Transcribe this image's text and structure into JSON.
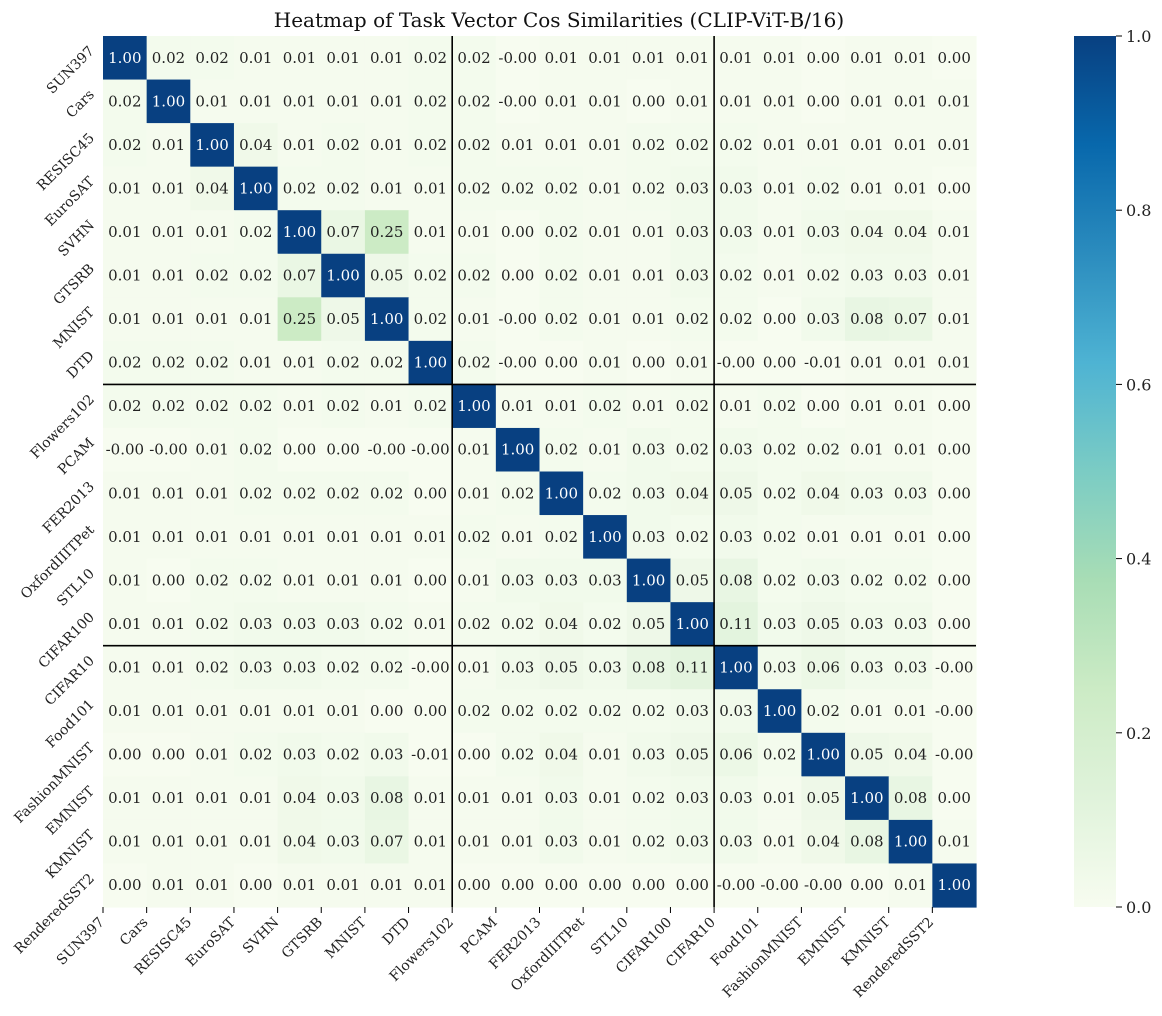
{
  "chart_data": {
    "type": "heatmap",
    "title": "Heatmap of Task Vector Cos Similarities (CLIP-ViT-B/16)",
    "labels": [
      "SUN397",
      "Cars",
      "RESISC45",
      "EuroSAT",
      "SVHN",
      "GTSRB",
      "MNIST",
      "DTD",
      "Flowers102",
      "PCAM",
      "FER2013",
      "OxfordIIITPet",
      "STL10",
      "CIFAR100",
      "CIFAR10",
      "Food101",
      "FashionMNIST",
      "EMNIST",
      "KMNIST",
      "RenderedSST2"
    ],
    "values": [
      [
        1.0,
        0.02,
        0.02,
        0.01,
        0.01,
        0.01,
        0.01,
        0.02,
        0.02,
        -0.0,
        0.01,
        0.01,
        0.01,
        0.01,
        0.01,
        0.01,
        0.0,
        0.01,
        0.01,
        0.0
      ],
      [
        0.02,
        1.0,
        0.01,
        0.01,
        0.01,
        0.01,
        0.01,
        0.02,
        0.02,
        -0.0,
        0.01,
        0.01,
        0.0,
        0.01,
        0.01,
        0.01,
        0.0,
        0.01,
        0.01,
        0.01
      ],
      [
        0.02,
        0.01,
        1.0,
        0.04,
        0.01,
        0.02,
        0.01,
        0.02,
        0.02,
        0.01,
        0.01,
        0.01,
        0.02,
        0.02,
        0.02,
        0.01,
        0.01,
        0.01,
        0.01,
        0.01
      ],
      [
        0.01,
        0.01,
        0.04,
        1.0,
        0.02,
        0.02,
        0.01,
        0.01,
        0.02,
        0.02,
        0.02,
        0.01,
        0.02,
        0.03,
        0.03,
        0.01,
        0.02,
        0.01,
        0.01,
        0.0
      ],
      [
        0.01,
        0.01,
        0.01,
        0.02,
        1.0,
        0.07,
        0.25,
        0.01,
        0.01,
        0.0,
        0.02,
        0.01,
        0.01,
        0.03,
        0.03,
        0.01,
        0.03,
        0.04,
        0.04,
        0.01
      ],
      [
        0.01,
        0.01,
        0.02,
        0.02,
        0.07,
        1.0,
        0.05,
        0.02,
        0.02,
        0.0,
        0.02,
        0.01,
        0.01,
        0.03,
        0.02,
        0.01,
        0.02,
        0.03,
        0.03,
        0.01
      ],
      [
        0.01,
        0.01,
        0.01,
        0.01,
        0.25,
        0.05,
        1.0,
        0.02,
        0.01,
        -0.0,
        0.02,
        0.01,
        0.01,
        0.02,
        0.02,
        0.0,
        0.03,
        0.08,
        0.07,
        0.01
      ],
      [
        0.02,
        0.02,
        0.02,
        0.01,
        0.01,
        0.02,
        0.02,
        1.0,
        0.02,
        -0.0,
        0.0,
        0.01,
        0.0,
        0.01,
        -0.0,
        0.0,
        -0.01,
        0.01,
        0.01,
        0.01
      ],
      [
        0.02,
        0.02,
        0.02,
        0.02,
        0.01,
        0.02,
        0.01,
        0.02,
        1.0,
        0.01,
        0.01,
        0.02,
        0.01,
        0.02,
        0.01,
        0.02,
        0.0,
        0.01,
        0.01,
        0.0
      ],
      [
        -0.0,
        -0.0,
        0.01,
        0.02,
        0.0,
        0.0,
        -0.0,
        -0.0,
        0.01,
        1.0,
        0.02,
        0.01,
        0.03,
        0.02,
        0.03,
        0.02,
        0.02,
        0.01,
        0.01,
        0.0
      ],
      [
        0.01,
        0.01,
        0.01,
        0.02,
        0.02,
        0.02,
        0.02,
        0.0,
        0.01,
        0.02,
        1.0,
        0.02,
        0.03,
        0.04,
        0.05,
        0.02,
        0.04,
        0.03,
        0.03,
        0.0
      ],
      [
        0.01,
        0.01,
        0.01,
        0.01,
        0.01,
        0.01,
        0.01,
        0.01,
        0.02,
        0.01,
        0.02,
        1.0,
        0.03,
        0.02,
        0.03,
        0.02,
        0.01,
        0.01,
        0.01,
        0.0
      ],
      [
        0.01,
        0.0,
        0.02,
        0.02,
        0.01,
        0.01,
        0.01,
        0.0,
        0.01,
        0.03,
        0.03,
        0.03,
        1.0,
        0.05,
        0.08,
        0.02,
        0.03,
        0.02,
        0.02,
        0.0
      ],
      [
        0.01,
        0.01,
        0.02,
        0.03,
        0.03,
        0.03,
        0.02,
        0.01,
        0.02,
        0.02,
        0.04,
        0.02,
        0.05,
        1.0,
        0.11,
        0.03,
        0.05,
        0.03,
        0.03,
        0.0
      ],
      [
        0.01,
        0.01,
        0.02,
        0.03,
        0.03,
        0.02,
        0.02,
        -0.0,
        0.01,
        0.03,
        0.05,
        0.03,
        0.08,
        0.11,
        1.0,
        0.03,
        0.06,
        0.03,
        0.03,
        -0.0
      ],
      [
        0.01,
        0.01,
        0.01,
        0.01,
        0.01,
        0.01,
        0.0,
        0.0,
        0.02,
        0.02,
        0.02,
        0.02,
        0.02,
        0.03,
        0.03,
        1.0,
        0.02,
        0.01,
        0.01,
        -0.0
      ],
      [
        0.0,
        0.0,
        0.01,
        0.02,
        0.03,
        0.02,
        0.03,
        -0.01,
        0.0,
        0.02,
        0.04,
        0.01,
        0.03,
        0.05,
        0.06,
        0.02,
        1.0,
        0.05,
        0.04,
        -0.0
      ],
      [
        0.01,
        0.01,
        0.01,
        0.01,
        0.04,
        0.03,
        0.08,
        0.01,
        0.01,
        0.01,
        0.03,
        0.01,
        0.02,
        0.03,
        0.03,
        0.01,
        0.05,
        1.0,
        0.08,
        0.0
      ],
      [
        0.01,
        0.01,
        0.01,
        0.01,
        0.04,
        0.03,
        0.07,
        0.01,
        0.01,
        0.01,
        0.03,
        0.01,
        0.02,
        0.03,
        0.03,
        0.01,
        0.04,
        0.08,
        1.0,
        0.01
      ],
      [
        0.0,
        0.01,
        0.01,
        0.0,
        0.01,
        0.01,
        0.01,
        0.01,
        0.0,
        0.0,
        0.0,
        0.0,
        0.0,
        0.0,
        -0.0,
        -0.0,
        -0.0,
        0.0,
        0.01,
        1.0
      ]
    ],
    "value_range": [
      0.0,
      1.0
    ],
    "colormap": [
      "#f7fcf0",
      "#e0f3db",
      "#ccebc5",
      "#a8ddb5",
      "#7bccc4",
      "#4eb3d3",
      "#2b8cbe",
      "#0868ac",
      "#084081"
    ],
    "colorbar_ticks": [
      0.0,
      0.2,
      0.4,
      0.6,
      0.8,
      1.0
    ],
    "colorbar_tick_labels": [
      "0.0",
      "0.2",
      "0.4",
      "0.6",
      "0.8",
      "1.0"
    ],
    "group_boundaries": [
      8,
      14
    ],
    "cell_label_decimals": 2
  }
}
